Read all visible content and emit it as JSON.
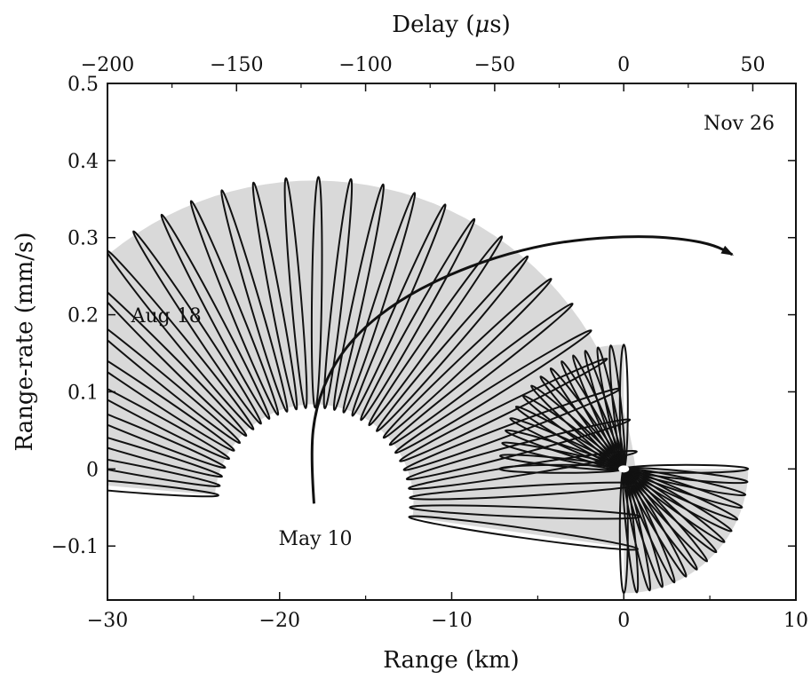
{
  "chart_data": {
    "type": "line",
    "title": "",
    "xlabel": "Range (km)",
    "ylabel": "Range-rate (mm/s)",
    "x2label": "Delay (μs)",
    "xlim": [
      -30,
      10
    ],
    "ylim": [
      -0.17,
      0.5
    ],
    "x2lim": [
      -200,
      66.7
    ],
    "grid": false,
    "legend": "none",
    "xticks": [
      -30,
      -20,
      -10,
      0,
      10
    ],
    "xtick_labels": [
      "−30",
      "−20",
      "−10",
      "0",
      "10"
    ],
    "yticks": [
      -0.1,
      0,
      0.1,
      0.2,
      0.3,
      0.4,
      0.5
    ],
    "ytick_labels": [
      "−0.1",
      "0",
      "0.1",
      "0.2",
      "0.3",
      "0.4",
      "0.5"
    ],
    "x2ticks": [
      -200,
      -150,
      -100,
      -50,
      0,
      50
    ],
    "x2tick_labels": [
      "−200",
      "−150",
      "−100",
      "−50",
      "0",
      "50"
    ],
    "annotations": [
      {
        "text": "Nov 26",
        "x": 6.7,
        "y": 0.415
      },
      {
        "text": "Aug 18",
        "x": -24.5,
        "y": 0.165
      },
      {
        "text": "May 10",
        "x": -18.0,
        "y": -0.05
      }
    ],
    "series": [
      {
        "values_x": [
          -18.0,
          -18.2,
          -17.9,
          -16.9,
          -15.3,
          -13.1,
          -10.4,
          -7.4,
          -4.4,
          -1.4,
          1.3,
          3.6,
          5.3,
          6.3
        ],
        "values_y": [
          -0.045,
          0.02,
          0.08,
          0.135,
          0.18,
          0.218,
          0.25,
          0.275,
          0.292,
          0.3,
          0.302,
          0.298,
          0.29,
          0.278
        ]
      }
    ],
    "ellipse_tracks": [
      {
        "center": [
          -18.0,
          -0.045
        ],
        "end": [
          6.6,
          0.278
        ],
        "shading": "#d9d9d9"
      },
      {
        "center": [
          0.0,
          0.0
        ],
        "shading": "#d9d9d9"
      }
    ]
  }
}
